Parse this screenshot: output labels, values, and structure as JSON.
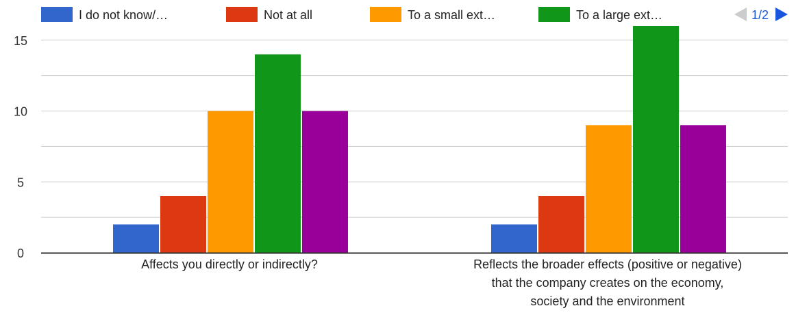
{
  "chart_data": {
    "type": "bar",
    "categories": [
      [
        "Affects you directly or indirectly?"
      ],
      [
        "Reflects the broader effects (positive or negative)",
        "that the company creates on the economy,",
        "society and the environment"
      ]
    ],
    "series": [
      {
        "name": "I do not know/…",
        "color": "#3366cc",
        "values": [
          2,
          2
        ]
      },
      {
        "name": "Not at all",
        "color": "#dc3912",
        "values": [
          4,
          4
        ]
      },
      {
        "name": "To a small ext…",
        "color": "#ff9900",
        "values": [
          10,
          9
        ]
      },
      {
        "name": "To a large ext…",
        "color": "#109618",
        "values": [
          14,
          16
        ]
      },
      {
        "color": "#990099",
        "values": [
          10,
          9
        ]
      }
    ],
    "yticks": [
      0,
      5,
      10,
      15
    ],
    "ylim": [
      0,
      16
    ],
    "grid": true,
    "legend": {
      "position": "top",
      "page_label": "1/2",
      "prev_icon": "triangle-left-icon",
      "next_icon": "triangle-right-icon",
      "prev_color": "#cccccc",
      "next_color": "#1a56db"
    }
  }
}
